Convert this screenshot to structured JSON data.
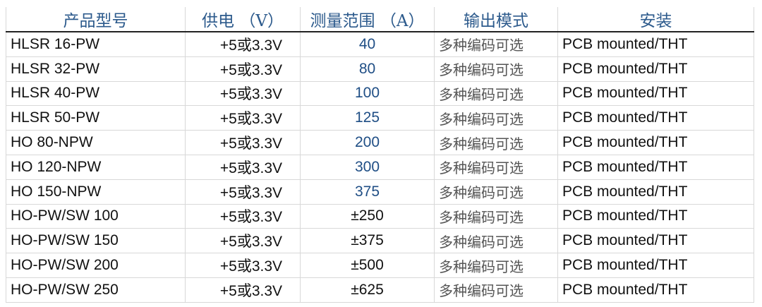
{
  "headers": [
    "产品型号",
    "供电 （V）",
    "测量范围 （A）",
    "输出模式",
    "安装"
  ],
  "rows": [
    [
      "HLSR 16-PW",
      "+5或3.3V",
      "40",
      "多种编码可选",
      "PCB mounted/THT"
    ],
    [
      "HLSR 32-PW",
      "+5或3.3V",
      "80",
      "多种编码可选",
      "PCB mounted/THT"
    ],
    [
      "HLSR 40-PW",
      "+5或3.3V",
      "100",
      "多种编码可选",
      "PCB mounted/THT"
    ],
    [
      "HLSR 50-PW",
      "+5或3.3V",
      "125",
      "多种编码可选",
      "PCB mounted/THT"
    ],
    [
      "HO 80-NPW",
      "+5或3.3V",
      "200",
      "多种编码可选",
      "PCB mounted/THT"
    ],
    [
      "HO 120-NPW",
      "+5或3.3V",
      "300",
      "多种编码可选",
      "PCB mounted/THT"
    ],
    [
      "HO 150-NPW",
      "+5或3.3V",
      "375",
      "多种编码可选",
      "PCB mounted/THT"
    ],
    [
      "HO-PW/SW 100",
      "+5或3.3V",
      "±250",
      "多种编码可选",
      "PCB mounted/THT"
    ],
    [
      "HO-PW/SW 150",
      "+5或3.3V",
      "±375",
      "多种编码可选",
      "PCB mounted/THT"
    ],
    [
      "HO-PW/SW 200",
      "+5或3.3V",
      "±500",
      "多种编码可选",
      "PCB mounted/THT"
    ],
    [
      "HO-PW/SW 250",
      "+5或3.3V",
      "±625",
      "多种编码可选",
      "PCB mounted/THT"
    ]
  ],
  "colors": {
    "header": "#2c5a8c",
    "range_unipolar": "#1f4e85",
    "output_mode": "#555555"
  }
}
